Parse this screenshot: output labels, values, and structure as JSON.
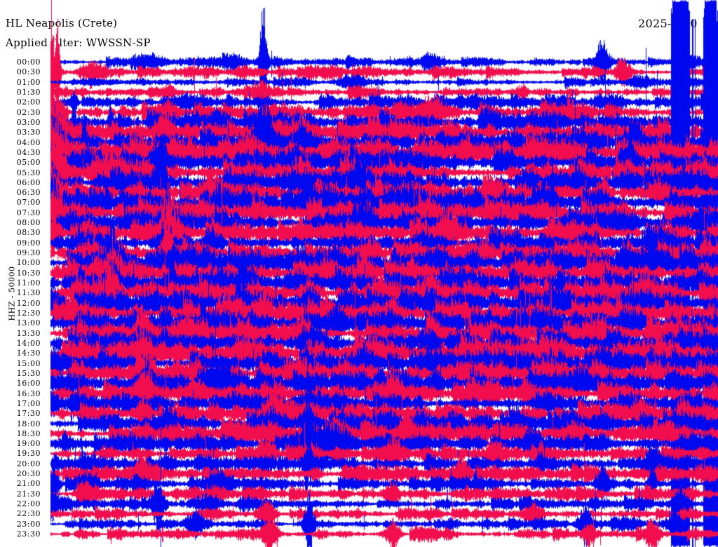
{
  "header": {
    "station_title": "HL Neapolis (Crete)",
    "filter_label": "Applied filter: WWSSN-SP",
    "date": "2025-06-0"
  },
  "y_axis": {
    "channel_scale_label": "HHZ - 50000"
  },
  "chart_data": {
    "type": "line",
    "variant": "helicorder-drumplot",
    "title": "HL Neapolis (Crete)",
    "subtitle": "Applied filter: WWSSN-SP",
    "date_label": "2025-06-0",
    "channel": "HHZ",
    "scale": 50000,
    "row_interval_minutes": 30,
    "rows": [
      "00:00",
      "00:30",
      "01:00",
      "01:30",
      "02:00",
      "02:30",
      "03:00",
      "03:30",
      "04:00",
      "04:30",
      "05:00",
      "05:30",
      "06:00",
      "06:30",
      "07:00",
      "07:30",
      "08:00",
      "08:30",
      "09:00",
      "09:30",
      "10:00",
      "10:30",
      "11:00",
      "11:30",
      "12:00",
      "12:30",
      "13:00",
      "13:30",
      "14:00",
      "14:30",
      "15:00",
      "15:30",
      "16:00",
      "16:30",
      "17:00",
      "17:30",
      "18:00",
      "18:30",
      "19:00",
      "19:30",
      "20:00",
      "20:30",
      "21:00",
      "21:30",
      "22:00",
      "22:30",
      "23:00",
      "23:30"
    ],
    "colors": {
      "even_rows": "#0008f0",
      "odd_rows": "#f20e4e",
      "text": "#000000",
      "background": "#ffffff"
    },
    "row_activity": [
      1.0,
      1.1,
      0.9,
      1.0,
      1.3,
      1.5,
      1.8,
      2.0,
      2.2,
      2.2,
      2.3,
      2.3,
      2.3,
      2.2,
      2.2,
      2.3,
      2.2,
      2.1,
      2.2,
      2.2,
      2.3,
      2.3,
      2.2,
      2.3,
      2.3,
      2.3,
      2.3,
      2.3,
      2.3,
      2.3,
      2.3,
      2.2,
      2.1,
      2.1,
      1.9,
      2.0,
      1.9,
      1.9,
      1.7,
      1.7,
      1.5,
      1.5,
      1.4,
      1.3,
      1.2,
      1.1,
      1.0,
      1.0
    ],
    "major_events": [
      [
        0,
        375,
        95,
        3
      ],
      [
        0,
        330,
        8,
        14
      ],
      [
        0,
        215,
        6,
        10
      ],
      [
        0,
        858,
        26,
        6
      ],
      [
        1,
        73,
        90,
        2
      ],
      [
        1,
        82,
        55,
        2
      ],
      [
        1,
        78,
        22,
        6
      ],
      [
        1,
        125,
        12,
        10
      ],
      [
        1,
        470,
        7,
        12
      ],
      [
        1,
        888,
        18,
        8
      ],
      [
        2,
        500,
        8,
        10
      ],
      [
        2,
        910,
        10,
        7
      ],
      [
        3,
        360,
        9,
        14
      ],
      [
        3,
        240,
        8,
        8
      ],
      [
        3,
        745,
        11,
        5
      ],
      [
        4,
        105,
        10,
        4
      ],
      [
        4,
        680,
        9,
        8
      ],
      [
        5,
        74,
        30,
        10
      ],
      [
        5,
        240,
        12,
        8
      ],
      [
        5,
        620,
        10,
        9
      ],
      [
        6,
        74,
        18,
        8
      ],
      [
        6,
        105,
        48,
        2
      ],
      [
        6,
        157,
        30,
        2
      ],
      [
        6,
        700,
        12,
        8
      ],
      [
        7,
        74,
        55,
        12
      ],
      [
        7,
        238,
        20,
        8
      ],
      [
        7,
        530,
        14,
        9
      ],
      [
        8,
        74,
        40,
        10
      ],
      [
        8,
        120,
        40,
        2
      ],
      [
        8,
        375,
        55,
        9
      ],
      [
        8,
        425,
        22,
        7
      ],
      [
        8,
        905,
        32,
        7
      ],
      [
        9,
        74,
        50,
        12
      ],
      [
        9,
        350,
        18,
        9
      ],
      [
        9,
        600,
        14,
        8
      ],
      [
        10,
        74,
        25,
        8
      ],
      [
        10,
        230,
        30,
        6
      ],
      [
        10,
        895,
        28,
        7
      ],
      [
        11,
        74,
        45,
        12
      ],
      [
        11,
        160,
        20,
        8
      ],
      [
        11,
        430,
        15,
        8
      ],
      [
        12,
        74,
        20,
        8
      ],
      [
        12,
        230,
        25,
        5
      ],
      [
        12,
        510,
        20,
        8
      ],
      [
        13,
        74,
        40,
        10
      ],
      [
        13,
        300,
        16,
        8
      ],
      [
        13,
        860,
        20,
        7
      ],
      [
        14,
        74,
        30,
        8
      ],
      [
        14,
        440,
        15,
        8
      ],
      [
        15,
        74,
        35,
        10
      ],
      [
        15,
        237,
        30,
        6
      ],
      [
        16,
        237,
        40,
        5
      ],
      [
        16,
        520,
        15,
        8
      ],
      [
        17,
        74,
        25,
        8
      ],
      [
        17,
        237,
        45,
        6
      ],
      [
        17,
        640,
        16,
        8
      ],
      [
        18,
        237,
        30,
        5
      ],
      [
        18,
        300,
        18,
        8
      ],
      [
        19,
        160,
        22,
        7
      ],
      [
        19,
        237,
        38,
        6
      ],
      [
        20,
        160,
        30,
        6
      ],
      [
        20,
        430,
        16,
        8
      ],
      [
        20,
        890,
        20,
        6
      ],
      [
        20,
        930,
        22,
        3
      ],
      [
        21,
        160,
        35,
        7
      ],
      [
        21,
        520,
        16,
        8
      ],
      [
        22,
        160,
        28,
        7
      ],
      [
        22,
        350,
        15,
        8
      ],
      [
        23,
        160,
        30,
        7
      ],
      [
        23,
        440,
        18,
        8
      ],
      [
        23,
        610,
        18,
        7
      ],
      [
        24,
        74,
        15,
        8
      ],
      [
        24,
        440,
        20,
        8
      ],
      [
        25,
        380,
        20,
        8
      ],
      [
        25,
        560,
        18,
        8
      ],
      [
        26,
        237,
        18,
        6
      ],
      [
        26,
        480,
        18,
        8
      ],
      [
        27,
        205,
        25,
        7
      ],
      [
        27,
        430,
        18,
        8
      ],
      [
        28,
        440,
        18,
        8
      ],
      [
        28,
        660,
        16,
        8
      ],
      [
        29,
        205,
        28,
        7
      ],
      [
        29,
        760,
        18,
        8
      ],
      [
        30,
        520,
        18,
        8
      ],
      [
        30,
        860,
        20,
        8
      ],
      [
        31,
        205,
        30,
        7
      ],
      [
        31,
        430,
        16,
        8
      ],
      [
        32,
        205,
        25,
        6
      ],
      [
        32,
        310,
        16,
        8
      ],
      [
        33,
        205,
        40,
        7
      ],
      [
        33,
        560,
        16,
        8
      ],
      [
        34,
        74,
        18,
        8
      ],
      [
        34,
        440,
        20,
        8
      ],
      [
        35,
        205,
        25,
        7
      ],
      [
        35,
        390,
        30,
        5
      ],
      [
        35,
        405,
        15,
        12
      ],
      [
        36,
        237,
        18,
        8
      ],
      [
        36,
        440,
        20,
        6
      ],
      [
        37,
        440,
        20,
        6
      ],
      [
        37,
        580,
        26,
        9
      ],
      [
        38,
        438,
        62,
        4
      ],
      [
        38,
        455,
        24,
        12
      ],
      [
        38,
        480,
        12,
        18
      ],
      [
        38,
        760,
        18,
        8
      ],
      [
        39,
        380,
        22,
        8
      ],
      [
        39,
        560,
        18,
        8
      ],
      [
        40,
        440,
        18,
        6
      ],
      [
        40,
        930,
        35,
        7
      ],
      [
        41,
        205,
        20,
        7
      ],
      [
        41,
        660,
        16,
        8
      ],
      [
        42,
        74,
        25,
        7
      ],
      [
        42,
        310,
        18,
        8
      ],
      [
        42,
        860,
        25,
        6
      ],
      [
        42,
        930,
        30,
        3
      ],
      [
        43,
        120,
        18,
        8
      ],
      [
        43,
        560,
        16,
        8
      ],
      [
        44,
        74,
        22,
        7
      ],
      [
        44,
        225,
        30,
        6
      ],
      [
        44,
        968,
        25,
        6
      ],
      [
        45,
        380,
        18,
        8
      ],
      [
        45,
        760,
        14,
        8
      ],
      [
        46,
        280,
        20,
        8
      ],
      [
        46,
        440,
        38,
        5
      ],
      [
        46,
        835,
        28,
        5
      ],
      [
        46,
        962,
        28,
        5
      ],
      [
        47,
        385,
        28,
        7
      ],
      [
        47,
        560,
        22,
        7
      ],
      [
        47,
        840,
        16,
        7
      ],
      [
        47,
        930,
        22,
        7
      ]
    ],
    "clipped_bands": [
      [
        957,
        27
      ],
      [
        1003,
        21
      ]
    ],
    "clipped_lines": [
      [
        987,
        2
      ],
      [
        991,
        1
      ]
    ],
    "render": {
      "seed": 1337,
      "base_amp": 2.0,
      "burst_prob": 0.02,
      "spike_prob": 0.004
    }
  }
}
